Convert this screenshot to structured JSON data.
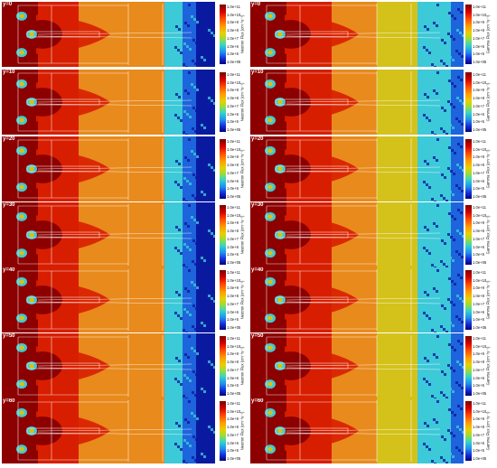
{
  "panels": [
    {
      "label": "y=0"
    },
    {
      "label": "y=10"
    },
    {
      "label": "y=20"
    },
    {
      "label": "y=30"
    },
    {
      "label": "y=40"
    },
    {
      "label": "y=50"
    },
    {
      "label": "y=60"
    }
  ],
  "neutron_colorbar": {
    "title": "Neutron Flux (cm⁻²s⁻¹)",
    "ticks": [
      "1.0e+11",
      "1.0e+10",
      "1.0e+9",
      "1.0e+8",
      "1.0e+7",
      "1.0e+6",
      "1.0e+5",
      "1.0e+05"
    ]
  },
  "gamma_colorbar": {
    "title": "Gamma Flux (cm⁻²s⁻¹)",
    "ticks": [
      "1.0e+11",
      "1.0e+10",
      "1.0e+9",
      "1.0e+8",
      "1.0e+7",
      "1.0e+6",
      "1.0e+5",
      "1.0e+05"
    ]
  },
  "colors": {
    "dark_red": "#8c0000",
    "red": "#d81e00",
    "orange": "#e88a1c",
    "yellow": "#d4c21a",
    "cyan": "#3cc9d8",
    "blue": "#1e64dc",
    "navy": "#0a1aa0"
  }
}
